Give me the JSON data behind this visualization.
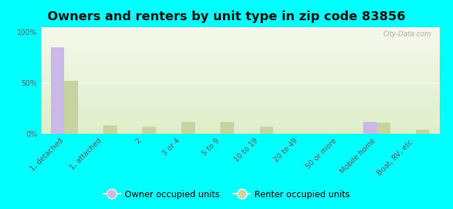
{
  "title": "Owners and renters by unit type in zip code 83856",
  "categories": [
    "1, detached",
    "1, attached",
    "2",
    "3 or 4",
    "5 to 9",
    "10 to 19",
    "20 to 49",
    "50 or more",
    "Mobile home",
    "Boat, RV, etc."
  ],
  "owner_values": [
    85,
    0,
    0,
    0,
    0,
    0,
    0,
    0,
    12,
    0
  ],
  "renter_values": [
    52,
    8,
    7,
    12,
    12,
    7,
    0,
    0,
    11,
    4
  ],
  "owner_color": "#c9b8e8",
  "renter_color": "#c8d4a0",
  "background_color": "#00ffff",
  "plot_bg_top": "#ddeec8",
  "plot_bg_bottom": "#f5f8ec",
  "ylabel_ticks": [
    "0%",
    "50%",
    "100%"
  ],
  "ytick_vals": [
    0,
    50,
    100
  ],
  "ylim": [
    0,
    105
  ],
  "bar_width": 0.35,
  "title_fontsize": 13,
  "tick_fontsize": 7.5,
  "legend_fontsize": 9,
  "watermark": "City-Data.com"
}
